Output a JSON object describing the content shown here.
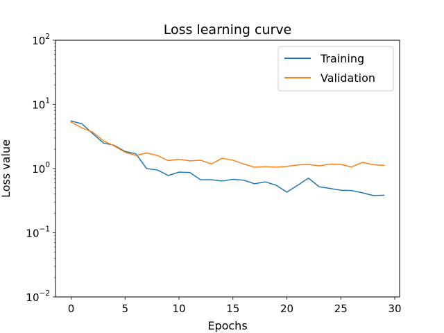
{
  "chart_data": {
    "type": "line",
    "title": "Loss learning curve",
    "xlabel": "Epochs",
    "ylabel": "Loss value",
    "yscale": "log",
    "xlim": [
      -1.45,
      30.45
    ],
    "ylim": [
      0.01,
      100
    ],
    "x_ticks": [
      0,
      5,
      10,
      15,
      20,
      25,
      30
    ],
    "y_ticks": [
      {
        "value": 0.01,
        "base": "10",
        "exp": "−2"
      },
      {
        "value": 0.1,
        "base": "10",
        "exp": "−1"
      },
      {
        "value": 1,
        "base": "10",
        "exp": "0"
      },
      {
        "value": 10,
        "base": "10",
        "exp": "1"
      },
      {
        "value": 100,
        "base": "10",
        "exp": "2"
      }
    ],
    "legend_position": "top-right",
    "grid": false,
    "x": [
      0,
      1,
      2,
      3,
      4,
      5,
      6,
      7,
      8,
      9,
      10,
      11,
      12,
      13,
      14,
      15,
      16,
      17,
      18,
      19,
      20,
      21,
      22,
      23,
      24,
      25,
      26,
      27,
      28,
      29
    ],
    "series": [
      {
        "name": "Training",
        "color": "#1f77b4",
        "values": [
          5.5,
          5.0,
          3.5,
          2.5,
          2.3,
          1.85,
          1.7,
          1.0,
          0.95,
          0.78,
          0.88,
          0.87,
          0.67,
          0.67,
          0.64,
          0.68,
          0.66,
          0.58,
          0.62,
          0.55,
          0.43,
          0.55,
          0.71,
          0.52,
          0.49,
          0.46,
          0.455,
          0.42,
          0.38,
          0.385
        ]
      },
      {
        "name": "Validation",
        "color": "#ff7f0e",
        "values": [
          5.3,
          4.3,
          3.7,
          2.7,
          2.25,
          1.8,
          1.6,
          1.75,
          1.6,
          1.33,
          1.4,
          1.32,
          1.35,
          1.18,
          1.45,
          1.35,
          1.18,
          1.05,
          1.07,
          1.05,
          1.08,
          1.14,
          1.16,
          1.1,
          1.17,
          1.16,
          1.06,
          1.25,
          1.15,
          1.12
        ]
      }
    ]
  }
}
